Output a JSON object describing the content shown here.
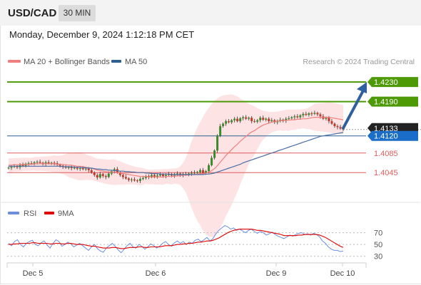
{
  "header": {
    "symbol": "USD/CAD",
    "timeframe": "30 MIN"
  },
  "timestamp": "Monday, December 9, 2024 1:12:18 PM CET",
  "legend": {
    "bollinger_label": "MA 20 + Bollinger Bands",
    "ma50_label": "MA 50",
    "credit": "Research © 2024 Trading Central",
    "rsi_label": "RSI",
    "rsi_ma_label": "9MA"
  },
  "colors": {
    "resistance": "#4d9a06",
    "support": "#e05c5c",
    "pivot": "#2d5f8f",
    "current_price": "#1a6dc8",
    "ma20": "#f08080",
    "ma50": "#4a6fa5",
    "band_fill": "#fde0e0",
    "candle_up": "#3a8a2a",
    "candle_down": "#c0392b",
    "arrow": "#2f5f9e",
    "rsi": "#6b8ede",
    "rsi_ma": "#e00000"
  },
  "chart_data": [
    {
      "type": "candlestick",
      "x_labels": [
        "Dec 5",
        "Dec 6",
        "Dec 9",
        "Dec 10"
      ],
      "ylim": [
        1.399,
        1.4255
      ],
      "levels": {
        "resistance": [
          1.423,
          1.419
        ],
        "current": 1.4133,
        "pivot": 1.412,
        "support": [
          1.4085,
          1.4045
        ]
      },
      "level_labels": [
        "1.4230",
        "1.4190",
        "1.4133",
        "1.4120",
        "1.4085",
        "1.4045"
      ],
      "arrow_target": 1.423,
      "close": [
        1.4055,
        1.4057,
        1.4058,
        1.4056,
        1.4061,
        1.4059,
        1.4063,
        1.4064,
        1.4063,
        1.4066,
        1.4067,
        1.4065,
        1.4063,
        1.4066,
        1.4064,
        1.4065,
        1.4064,
        1.4061,
        1.4059,
        1.4057,
        1.4055,
        1.4056,
        1.4054,
        1.4055,
        1.4053,
        1.4054,
        1.4052,
        1.4053,
        1.405,
        1.4045,
        1.404,
        1.4035,
        1.4042,
        1.4038,
        1.4036,
        1.4043,
        1.4048,
        1.4052,
        1.4045,
        1.404,
        1.4036,
        1.4033,
        1.403,
        1.4031,
        1.4029,
        1.4028,
        1.4032,
        1.4034,
        1.4038,
        1.4036,
        1.404,
        1.4037,
        1.4039,
        1.4041,
        1.4038,
        1.404,
        1.4042,
        1.4039,
        1.4041,
        1.4043,
        1.404,
        1.4042,
        1.4041,
        1.4043,
        1.4045,
        1.4044,
        1.4046,
        1.405,
        1.4044,
        1.4048,
        1.406,
        1.4075,
        1.409,
        1.412,
        1.414,
        1.4145,
        1.415,
        1.4148,
        1.4152,
        1.4155,
        1.415,
        1.4156,
        1.4158,
        1.4155,
        1.4157,
        1.415,
        1.4149,
        1.4152,
        1.4157,
        1.4153,
        1.4155,
        1.415,
        1.4152,
        1.4148,
        1.415,
        1.4153,
        1.4151,
        1.4155,
        1.4156,
        1.4158,
        1.416,
        1.4158,
        1.4162,
        1.4165,
        1.4163,
        1.4166,
        1.4165,
        1.4167,
        1.4164,
        1.416,
        1.4155,
        1.4157,
        1.415,
        1.4145,
        1.414,
        1.4138,
        1.4135,
        1.4133
      ],
      "ma20": [
        1.406,
        1.406,
        1.4061,
        1.4061,
        1.4061,
        1.4062,
        1.4062,
        1.4062,
        1.4062,
        1.4063,
        1.4063,
        1.4063,
        1.4063,
        1.4063,
        1.4063,
        1.4063,
        1.4063,
        1.4062,
        1.4062,
        1.4061,
        1.4061,
        1.406,
        1.406,
        1.4059,
        1.4058,
        1.4058,
        1.4057,
        1.4056,
        1.4055,
        1.4054,
        1.4052,
        1.405,
        1.4049,
        1.4048,
        1.4047,
        1.4046,
        1.4046,
        1.4046,
        1.4045,
        1.4044,
        1.4043,
        1.4042,
        1.4041,
        1.404,
        1.4039,
        1.4038,
        1.4037,
        1.4037,
        1.4037,
        1.4036,
        1.4036,
        1.4036,
        1.4036,
        1.4036,
        1.4036,
        1.4037,
        1.4037,
        1.4037,
        1.4038,
        1.4038,
        1.4039,
        1.4039,
        1.404,
        1.404,
        1.4041,
        1.4041,
        1.4042,
        1.4043,
        1.4043,
        1.4044,
        1.4046,
        1.4049,
        1.4053,
        1.4059,
        1.4066,
        1.4073,
        1.408,
        1.4086,
        1.4092,
        1.4098,
        1.4103,
        1.4109,
        1.4114,
        1.4119,
        1.4124,
        1.4128,
        1.4131,
        1.4135,
        1.4139,
        1.4142,
        1.4144,
        1.4146,
        1.4148,
        1.4149,
        1.415,
        1.4151,
        1.4151,
        1.4152,
        1.4152,
        1.4153,
        1.4153,
        1.4154,
        1.4154,
        1.4155,
        1.4155,
        1.4156,
        1.4157,
        1.4158,
        1.4158,
        1.4158,
        1.4158,
        1.4158,
        1.4158,
        1.4157,
        1.4156,
        1.4155,
        1.4154,
        1.4153
      ],
      "ma50": [
        1.4058,
        1.4058,
        1.4058,
        1.4058,
        1.4058,
        1.4058,
        1.4058,
        1.4058,
        1.4058,
        1.4058,
        1.4058,
        1.4058,
        1.4058,
        1.4058,
        1.4058,
        1.4058,
        1.4058,
        1.4058,
        1.4058,
        1.4057,
        1.4057,
        1.4057,
        1.4057,
        1.4056,
        1.4056,
        1.4056,
        1.4055,
        1.4055,
        1.4054,
        1.4054,
        1.4053,
        1.4052,
        1.4052,
        1.4051,
        1.4051,
        1.405,
        1.405,
        1.4049,
        1.4049,
        1.4048,
        1.4048,
        1.4047,
        1.4047,
        1.4046,
        1.4046,
        1.4045,
        1.4045,
        1.4045,
        1.4044,
        1.4044,
        1.4043,
        1.4043,
        1.4043,
        1.4042,
        1.4042,
        1.4042,
        1.4042,
        1.4041,
        1.4041,
        1.4041,
        1.4041,
        1.4041,
        1.4041,
        1.4041,
        1.4041,
        1.4041,
        1.4041,
        1.4041,
        1.4041,
        1.4042,
        1.4042,
        1.4043,
        1.4044,
        1.4046,
        1.4048,
        1.405,
        1.4052,
        1.4054,
        1.4056,
        1.4058,
        1.406,
        1.4062,
        1.4065,
        1.4067,
        1.4069,
        1.4071,
        1.4073,
        1.4075,
        1.4077,
        1.4079,
        1.4081,
        1.4083,
        1.4085,
        1.4087,
        1.4089,
        1.4091,
        1.4093,
        1.4095,
        1.4097,
        1.4099,
        1.4101,
        1.4103,
        1.4105,
        1.4107,
        1.4109,
        1.4111,
        1.4113,
        1.4115,
        1.4117,
        1.4119,
        1.412,
        1.4121,
        1.4122,
        1.4123,
        1.4124,
        1.4125,
        1.4126,
        1.4127
      ]
    },
    {
      "type": "line",
      "title": "RSI",
      "y_ticks": [
        70,
        50,
        30
      ],
      "ylim": [
        20,
        90
      ],
      "rsi": [
        52,
        48,
        55,
        58,
        50,
        46,
        52,
        55,
        57,
        50,
        48,
        53,
        56,
        49,
        44,
        52,
        58,
        55,
        47,
        50,
        54,
        51,
        46,
        49,
        52,
        48,
        44,
        40,
        46,
        50,
        43,
        39,
        37,
        44,
        48,
        52,
        47,
        41,
        36,
        42,
        48,
        52,
        46,
        44,
        50,
        47,
        42,
        46,
        51,
        48,
        44,
        47,
        52,
        55,
        50,
        47,
        53,
        56,
        52,
        55,
        50,
        54,
        52,
        57,
        59,
        55,
        58,
        62,
        56,
        60,
        68,
        74,
        78,
        82,
        80,
        76,
        78,
        74,
        76,
        73,
        70,
        74,
        76,
        72,
        69,
        72,
        70,
        66,
        68,
        71,
        67,
        64,
        62,
        60,
        63,
        66,
        64,
        67,
        69,
        70,
        67,
        68,
        66,
        69,
        67,
        63,
        56,
        52,
        46,
        42,
        40,
        40,
        38,
        39
      ],
      "rsi_ma": [
        50,
        50,
        51,
        51,
        52,
        52,
        52,
        52,
        53,
        53,
        52,
        52,
        52,
        52,
        51,
        51,
        52,
        52,
        51,
        51,
        52,
        52,
        51,
        50,
        50,
        50,
        49,
        48,
        47,
        47,
        46,
        45,
        44,
        44,
        44,
        45,
        45,
        44,
        43,
        43,
        44,
        45,
        45,
        45,
        46,
        46,
        45,
        45,
        46,
        46,
        46,
        46,
        47,
        48,
        48,
        48,
        49,
        50,
        50,
        51,
        51,
        52,
        52,
        53,
        54,
        54,
        55,
        56,
        56,
        57,
        59,
        61,
        64,
        67,
        70,
        72,
        74,
        75,
        76,
        76,
        76,
        76,
        76,
        75,
        74,
        74,
        73,
        72,
        71,
        70,
        69,
        68,
        67,
        65,
        65,
        65,
        65,
        65,
        66,
        66,
        67,
        67,
        67,
        67,
        67,
        66,
        64,
        62,
        59,
        56,
        53,
        50,
        47,
        45
      ]
    }
  ]
}
